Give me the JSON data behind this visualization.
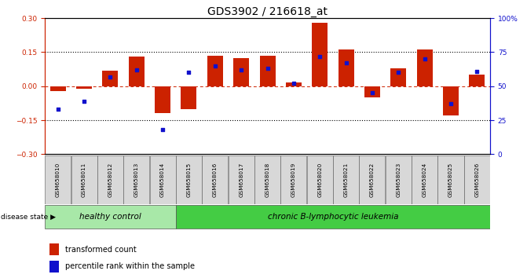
{
  "title": "GDS3902 / 216618_at",
  "samples": [
    "GSM658010",
    "GSM658011",
    "GSM658012",
    "GSM658013",
    "GSM658014",
    "GSM658015",
    "GSM658016",
    "GSM658017",
    "GSM658018",
    "GSM658019",
    "GSM658020",
    "GSM658021",
    "GSM658022",
    "GSM658023",
    "GSM658024",
    "GSM658025",
    "GSM658026"
  ],
  "red_bars": [
    -0.02,
    -0.01,
    0.07,
    0.13,
    -0.12,
    -0.1,
    0.135,
    0.125,
    0.135,
    0.015,
    0.28,
    0.16,
    -0.05,
    0.08,
    0.16,
    -0.13,
    0.05
  ],
  "blue_squares": [
    33,
    39,
    57,
    62,
    18,
    60,
    65,
    62,
    63,
    52,
    72,
    67,
    45,
    60,
    70,
    37,
    61
  ],
  "ylim_left": [
    -0.3,
    0.3
  ],
  "ylim_right": [
    0,
    100
  ],
  "yticks_left": [
    -0.3,
    -0.15,
    0.0,
    0.15,
    0.3
  ],
  "yticks_right": [
    0,
    25,
    50,
    75,
    100
  ],
  "ytick_labels_right": [
    "0",
    "25",
    "50",
    "75",
    "100%"
  ],
  "healthy_control_count": 5,
  "group1_label": "healthy control",
  "group2_label": "chronic B-lymphocytic leukemia",
  "disease_state_label": "disease state",
  "legend_red": "transformed count",
  "legend_blue": "percentile rank within the sample",
  "red_color": "#cc2200",
  "blue_color": "#1111cc",
  "bar_width": 0.6,
  "group1_bg": "#a8e8a8",
  "group2_bg": "#44cc44",
  "title_fontsize": 10,
  "tick_fontsize": 6.5,
  "label_fontsize": 7.5
}
